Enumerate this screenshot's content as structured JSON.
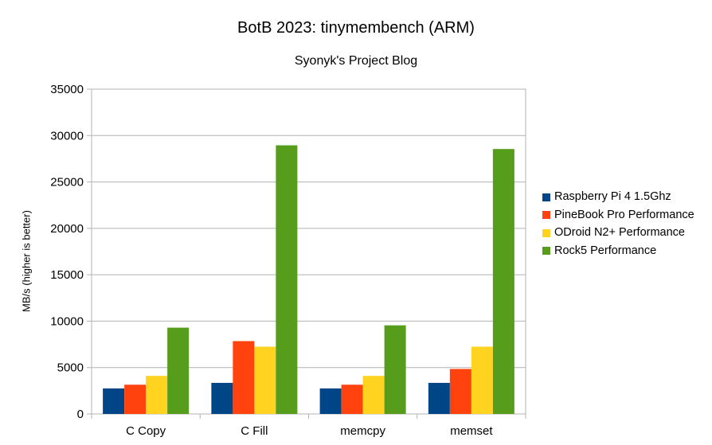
{
  "chart_data": {
    "type": "bar",
    "title": "BotB 2023: tinymembench (ARM)",
    "subtitle": "Syonyk's Project Blog",
    "xlabel": "",
    "ylabel": "MB/s (higher is better)",
    "ylim": [
      0,
      35000
    ],
    "yticks": [
      "0",
      "5000",
      "10000",
      "15000",
      "20000",
      "25000",
      "30000",
      "35000"
    ],
    "grid": true,
    "legend_position": "right",
    "categories": [
      "C Copy",
      "C Fill",
      "memcpy",
      "memset"
    ],
    "series": [
      {
        "name": "Raspberry Pi 4 1.5Ghz",
        "color": "#004586",
        "values": [
          2750,
          3350,
          2750,
          3350
        ]
      },
      {
        "name": "PineBook Pro Performance",
        "color": "#ff420e",
        "values": [
          3150,
          7850,
          3150,
          4850
        ]
      },
      {
        "name": "ODroid N2+ Performance",
        "color": "#ffd320",
        "values": [
          4100,
          7250,
          4100,
          7250
        ]
      },
      {
        "name": "Rock5 Performance",
        "color": "#579d1c",
        "values": [
          9300,
          28950,
          9550,
          28550
        ]
      }
    ]
  }
}
